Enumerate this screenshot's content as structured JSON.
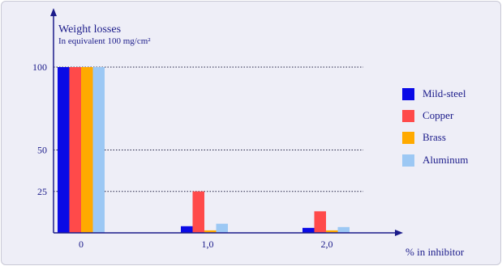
{
  "chart_data": {
    "type": "bar",
    "title": "Weight losses",
    "subtitle": "In equivalent 100 mg/cm²",
    "xlabel": "% in inhibitor",
    "categories": [
      "0",
      "1,0",
      "2,0"
    ],
    "yticks": [
      25,
      50,
      100
    ],
    "yticks_labels": [
      "25",
      "50",
      "100"
    ],
    "ylim": [
      0,
      112
    ],
    "grid": "horizontal dotted at ticks",
    "legend_position": "right",
    "series": [
      {
        "name": "Mild-steel",
        "color": "#0a0ae6",
        "values": [
          100,
          4,
          3
        ]
      },
      {
        "name": "Copper",
        "color": "#ff4a4a",
        "values": [
          100,
          25,
          13
        ]
      },
      {
        "name": "Brass",
        "color": "#ffaa00",
        "values": [
          100,
          1.5,
          1.5
        ]
      },
      {
        "name": "Aluminum",
        "color": "#9cc8f4",
        "values": [
          100,
          5.5,
          3.5
        ]
      }
    ]
  }
}
